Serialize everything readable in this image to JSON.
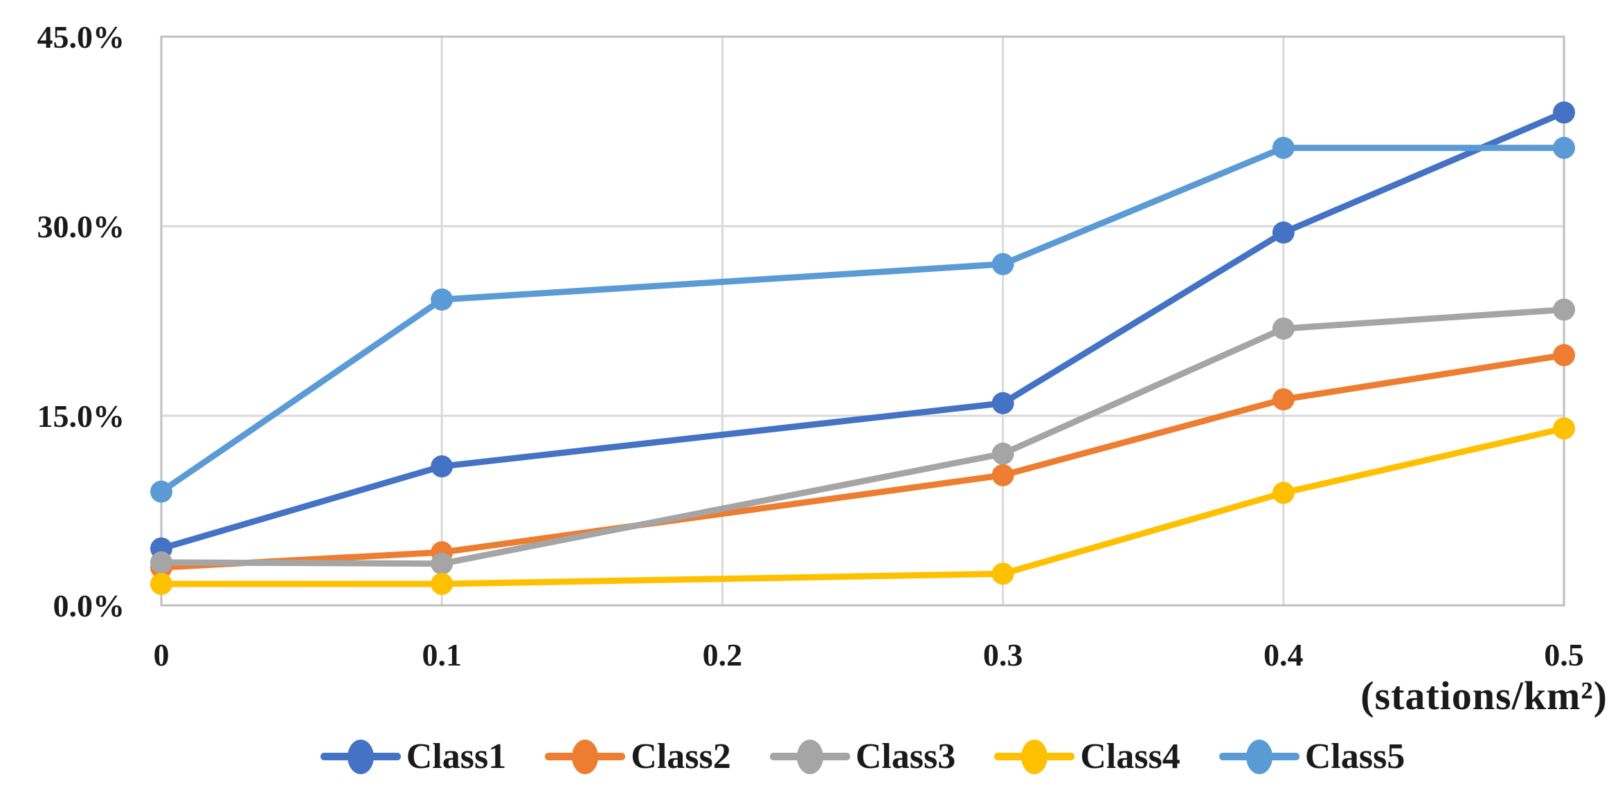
{
  "chart_data": {
    "type": "line",
    "title": "",
    "xlabel": "(stations/km²)",
    "ylabel": "",
    "x": [
      0,
      0.1,
      0.3,
      0.4,
      0.5
    ],
    "xlim": [
      0,
      0.5
    ],
    "ylim": [
      0,
      45
    ],
    "x_axis_ticks": [
      0,
      0.1,
      0.2,
      0.3,
      0.4,
      0.5
    ],
    "x_tick_labels": [
      "0",
      "0.1",
      "0.2",
      "0.3",
      "0.4",
      "0.5"
    ],
    "y_ticks": [
      0,
      15,
      30,
      45
    ],
    "y_tick_labels": [
      "0.0%",
      "15.0%",
      "30.0%",
      "45.0%"
    ],
    "grid": true,
    "legend_position": "bottom",
    "gridline_color": "#d9d9d9",
    "border_color": "#bfbfbf",
    "series": [
      {
        "name": "Class1",
        "color": "#4472C4",
        "values": [
          4.5,
          11.0,
          16.0,
          29.5,
          39.0
        ]
      },
      {
        "name": "Class2",
        "color": "#ED7D31",
        "values": [
          3.0,
          4.2,
          10.3,
          16.3,
          19.8
        ]
      },
      {
        "name": "Class3",
        "color": "#A5A5A5",
        "values": [
          3.4,
          3.3,
          12.0,
          21.9,
          23.4
        ]
      },
      {
        "name": "Class4",
        "color": "#FFC000",
        "values": [
          1.7,
          1.7,
          2.5,
          8.9,
          14.0
        ]
      },
      {
        "name": "Class5",
        "color": "#5B9BD5",
        "values": [
          9.0,
          24.2,
          27.0,
          36.2,
          36.2
        ]
      }
    ]
  }
}
